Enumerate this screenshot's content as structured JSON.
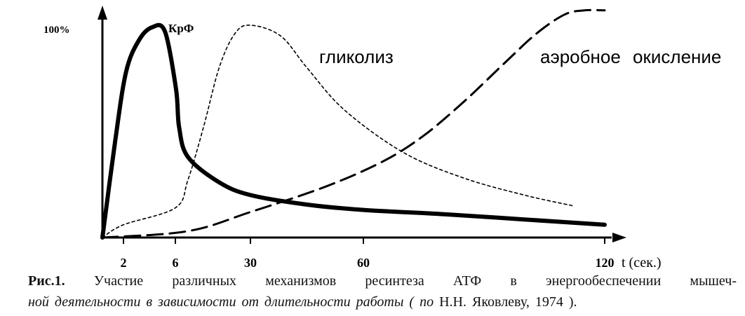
{
  "chart_data": {
    "type": "line",
    "ylabel": "100%",
    "xlabel": "t (сек.)",
    "x_ticks": [
      "2",
      "6",
      "30",
      "60",
      "120"
    ],
    "y_top_label": "100%",
    "series": [
      {
        "name": "КрФ",
        "style": "solid-thick",
        "points": [
          [
            0,
            0
          ],
          [
            1.2,
            0.45
          ],
          [
            2.2,
            0.78
          ],
          [
            3.2,
            0.93
          ],
          [
            4.2,
            0.99
          ],
          [
            5.2,
            0.97
          ],
          [
            6.2,
            0.7
          ],
          [
            7.2,
            0.52
          ],
          [
            10,
            0.38
          ],
          [
            20,
            0.26
          ],
          [
            30,
            0.2
          ],
          [
            45,
            0.155
          ],
          [
            60,
            0.13
          ],
          [
            80,
            0.11
          ],
          [
            100,
            0.085
          ],
          [
            120,
            0.06
          ]
        ]
      },
      {
        "name": "гликолиз",
        "style": "dotted",
        "points": [
          [
            0,
            0
          ],
          [
            2,
            0.06
          ],
          [
            6,
            0.14
          ],
          [
            10,
            0.27
          ],
          [
            15,
            0.52
          ],
          [
            20,
            0.8
          ],
          [
            25,
            0.96
          ],
          [
            30,
            1.0
          ],
          [
            38,
            0.95
          ],
          [
            45,
            0.8
          ],
          [
            55,
            0.6
          ],
          [
            70,
            0.4
          ],
          [
            85,
            0.28
          ],
          [
            100,
            0.2
          ],
          [
            112,
            0.15
          ]
        ]
      },
      {
        "name": "аэробное окисление",
        "style": "dashed",
        "points": [
          [
            0,
            0
          ],
          [
            10,
            0.03
          ],
          [
            30,
            0.12
          ],
          [
            50,
            0.24
          ],
          [
            65,
            0.36
          ],
          [
            75,
            0.48
          ],
          [
            85,
            0.64
          ],
          [
            95,
            0.82
          ],
          [
            103,
            0.96
          ],
          [
            110,
            1.05
          ],
          [
            115,
            1.07
          ],
          [
            120,
            1.07
          ]
        ]
      }
    ]
  },
  "caption": {
    "figure_label": "Рис.1.",
    "line1": "Участие различных механизмов ресинтеза АТФ в энергообеспечении мышеч-",
    "line2_main": "ной деятельности в зависимости от длительности работы ( ",
    "line2_italic": "по",
    "line2_rest": " Н.Н. Яковлеву, 1974 )."
  }
}
